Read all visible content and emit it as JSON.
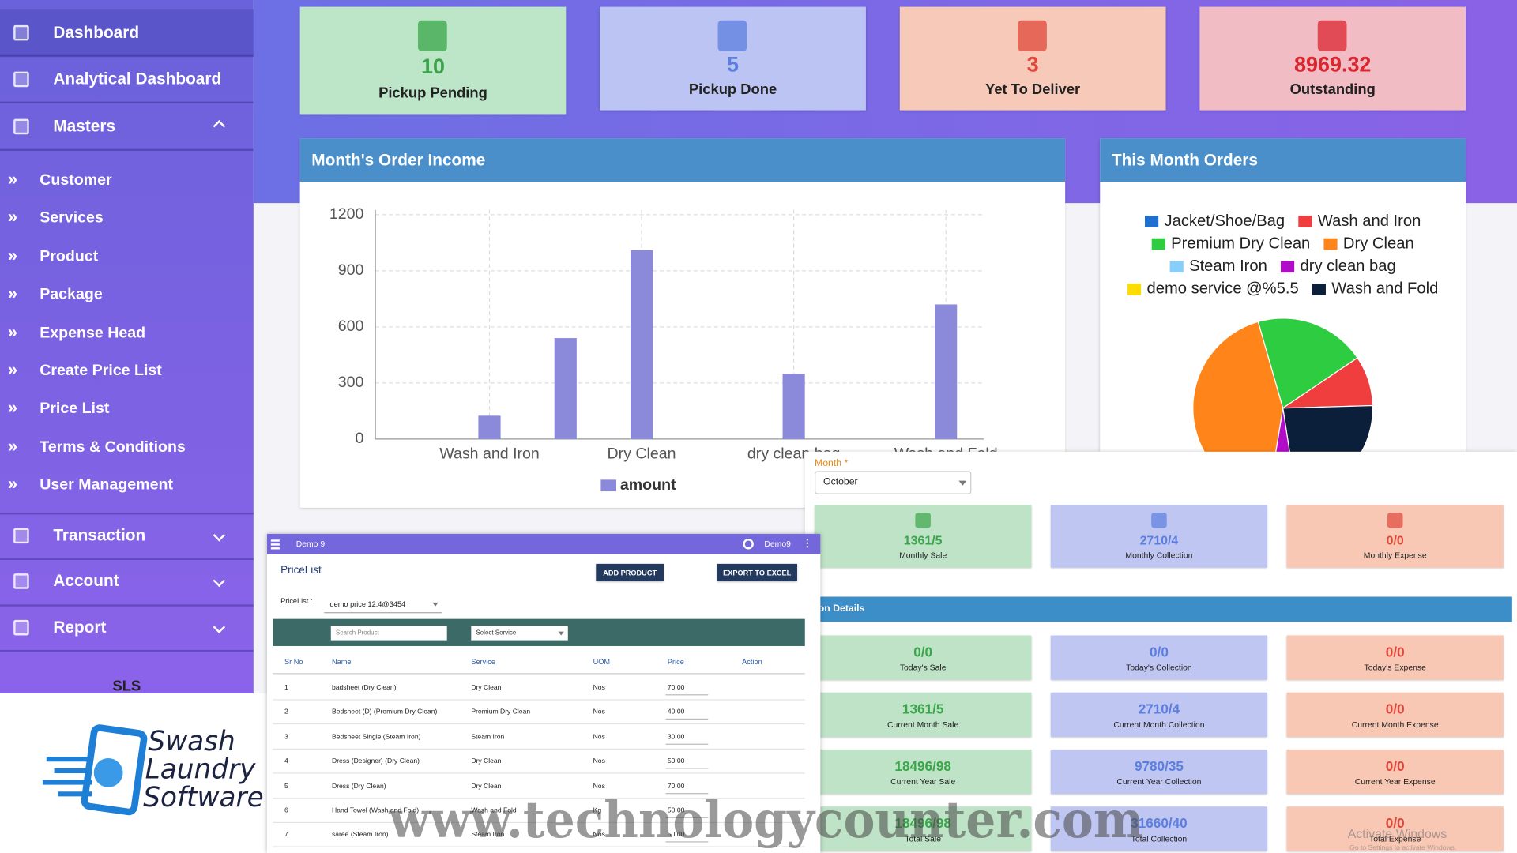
{
  "sidebar": {
    "menu": [
      "Dashboard",
      "Analytical Dashboard",
      "Masters"
    ],
    "submenu": [
      "Customer",
      "Services",
      "Product",
      "Package",
      "Expense Head",
      "Create Price List",
      "Price List",
      "Terms & Conditions",
      "User Management"
    ],
    "menu2": [
      "Transaction",
      "Account",
      "Report"
    ],
    "footer": "SLS"
  },
  "logo": [
    "Swash",
    "Laundry",
    "Software"
  ],
  "summary_cards": [
    {
      "value": 10,
      "label": "Pickup Pending",
      "color": "#3aa54a",
      "background": "#bde5c8"
    },
    {
      "value": 5,
      "label": "Pickup Done",
      "color": "#5b7fe0",
      "background": "#bcc4f3"
    },
    {
      "value": 3,
      "label": "Yet To Deliver",
      "color": "#e0473a",
      "background": "#f7c9b8"
    },
    {
      "value": 8969.32,
      "label": "Outstanding",
      "color": "#d9262f",
      "background": "#f2bcc5"
    }
  ],
  "chart_data": [
    {
      "type": "bar",
      "title": "Month's Order Income",
      "categories": [
        null,
        "Wash and Iron",
        null,
        "Dry Clean",
        null,
        "dry clean bag",
        null,
        "Wash and Fold"
      ],
      "series": [
        {
          "name": "amount",
          "color": "#8b89d9",
          "values": [
            0,
            125,
            540,
            1010,
            0,
            350,
            0,
            720
          ]
        }
      ],
      "ylim": [
        0,
        1200
      ],
      "yticks": [
        0,
        300,
        600,
        900,
        1200
      ],
      "grid": true
    },
    {
      "type": "pie",
      "title": "This Month Orders",
      "categories": [
        "Jacket/Shoe/Bag",
        "Wash and Iron",
        "Premium Dry Clean",
        "Dry Clean",
        "Steam Iron",
        "dry clean bag",
        "demo service @%5.5",
        "Wash and Fold"
      ],
      "colors": [
        "#1f6fd0",
        "#f03e3e",
        "#2ecc40",
        "#ff851b",
        "#87cefa",
        "#b10dc9",
        "#ffdc00",
        "#0b1f3a"
      ],
      "values": [
        0,
        9,
        20,
        43,
        0,
        5,
        0,
        23
      ]
    }
  ],
  "month_filter": {
    "label": "Month *",
    "value": "October"
  },
  "monthly_cards": [
    {
      "value": "1361/5",
      "label": "Monthly Sale"
    },
    {
      "value": "2710/4",
      "label": "Monthly Collection"
    },
    {
      "value": "0/0",
      "label": "Monthly Expense"
    }
  ],
  "card_colors": {
    "backgrounds": [
      "#bfe3c6",
      "#c0c6f2",
      "#f8c8b5"
    ],
    "values": [
      "#3aa54a",
      "#5b7fe0",
      "#e0473a"
    ]
  },
  "transaction_details": {
    "title": "Transaction Details",
    "cards": [
      [
        {
          "value": "0/0",
          "label": "Today's Sale"
        },
        {
          "value": "0/0",
          "label": "Today's Collection"
        },
        {
          "value": "0/0",
          "label": "Today's Expense"
        }
      ],
      [
        {
          "value": "1361/5",
          "label": "Current Month Sale"
        },
        {
          "value": "2710/4",
          "label": "Current Month Collection"
        },
        {
          "value": "0/0",
          "label": "Current Month Expense"
        }
      ],
      [
        {
          "value": "18496/98",
          "label": "Current Year Sale"
        },
        {
          "value": "9780/35",
          "label": "Current Year Collection"
        },
        {
          "value": "0/0",
          "label": "Current Year Expense"
        }
      ],
      [
        {
          "value": "18496/98",
          "label": "Total Sale"
        },
        {
          "value": "31660/40",
          "label": "Total Collection"
        },
        {
          "value": "0/0",
          "label": "Total Expense"
        }
      ]
    ]
  },
  "price_list": {
    "topbar": {
      "title": "Demo 9",
      "user": "Demo9"
    },
    "title": "PriceList",
    "buttons": [
      "ADD PRODUCT",
      "EXPORT TO EXCEL"
    ],
    "filter_label": "PriceList :",
    "filter_value": "demo price 12.4@3454",
    "search_placeholder": "Search Product",
    "service_placeholder": "Select Service",
    "columns": [
      "Sr No",
      "Name",
      "Service",
      "UOM",
      "Price",
      "Action"
    ],
    "rows": [
      [
        "1",
        "badsheet (Dry Clean)",
        "Dry Clean",
        "Nos",
        "70.00"
      ],
      [
        "2",
        "Bedsheet (D) (Premium Dry Clean)",
        "Premium Dry Clean",
        "Nos",
        "40.00"
      ],
      [
        "3",
        "Bedsheet Single (Steam Iron)",
        "Steam Iron",
        "Nos",
        "30.00"
      ],
      [
        "4",
        "Dress (Designer) (Dry Clean)",
        "Dry Clean",
        "Nos",
        "50.00"
      ],
      [
        "5",
        "Dress (Dry Clean)",
        "Dry Clean",
        "Nos",
        "70.00"
      ],
      [
        "6",
        "Hand Towel (Wash and Fold)",
        "Wash and Fold",
        "Kg",
        "50.00"
      ],
      [
        "7",
        "saree (Steam Iron)",
        "Steam Iron",
        "Nos",
        "50.00"
      ]
    ]
  },
  "watermark": "www.technologycounter.com",
  "os_notice": [
    "Activate Windows",
    "Go to Settings to activate Windows."
  ]
}
